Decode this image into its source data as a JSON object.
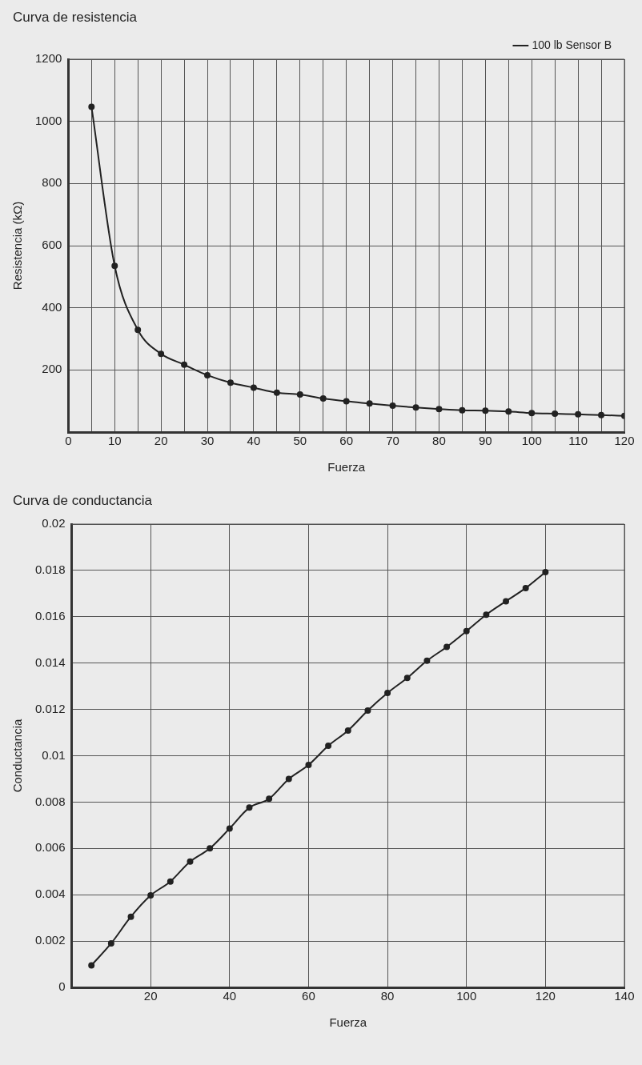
{
  "chart_data": [
    {
      "type": "line",
      "title": "Curva de resistencia",
      "xlabel": "Fuerza",
      "ylabel": "Resistencia (kΩ)",
      "legend": "top right",
      "grid": true,
      "marker": "circle",
      "line_style": "solid",
      "xlim": [
        0,
        120
      ],
      "xticks": [
        0,
        {
          "value": 5,
          "label": null
        },
        10,
        {
          "value": 15,
          "label": null
        },
        20,
        {
          "value": 25,
          "label": null
        },
        30,
        {
          "value": 35,
          "label": null
        },
        40,
        {
          "value": 45,
          "label": null
        },
        50,
        {
          "value": 55,
          "label": null
        },
        60,
        {
          "value": 65,
          "label": null
        },
        70,
        {
          "value": 75,
          "label": null
        },
        80,
        {
          "value": 85,
          "label": null
        },
        90,
        {
          "value": 95,
          "label": null
        },
        100,
        {
          "value": 105,
          "label": null
        },
        110,
        {
          "value": 115,
          "label": null
        },
        120
      ],
      "ylim": [
        0,
        1200
      ],
      "yticks": [
        200,
        400,
        600,
        800,
        1000,
        1200
      ],
      "x": [
        5,
        10,
        15,
        20,
        25,
        30,
        35,
        40,
        45,
        50,
        55,
        60,
        65,
        70,
        75,
        80,
        85,
        90,
        95,
        100,
        105,
        110,
        115,
        120
      ],
      "series": [
        {
          "name": "100 lb Sensor B",
          "color": "#222222",
          "values": [
            1047,
            535,
            329,
            252,
            217,
            183,
            159,
            143,
            127,
            121,
            108,
            99,
            92,
            85,
            79,
            74,
            70,
            69,
            66,
            61,
            59,
            57,
            55,
            52
          ]
        }
      ]
    },
    {
      "type": "line",
      "title": "Curva de conductancia",
      "xlabel": "Fuerza",
      "ylabel": "Conductancia",
      "grid": true,
      "marker": "circle",
      "line_style": "solid",
      "xlim": [
        0,
        140
      ],
      "xticks": [
        20,
        40,
        60,
        80,
        100,
        120,
        140
      ],
      "ylim": [
        0,
        0.02
      ],
      "yticks": [
        0,
        0.002,
        0.004,
        0.006,
        0.008,
        0.01,
        0.012,
        0.014,
        0.016,
        0.018,
        0.02
      ],
      "x": [
        5,
        10,
        15,
        20,
        25,
        30,
        35,
        40,
        45,
        50,
        55,
        60,
        65,
        70,
        75,
        80,
        85,
        90,
        95,
        100,
        105,
        110,
        115,
        120
      ],
      "series": [
        {
          "color": "#222222",
          "values": [
            0.00095,
            0.0019,
            0.00305,
            0.00397,
            0.00457,
            0.00543,
            0.006,
            0.00686,
            0.00776,
            0.00814,
            0.009,
            0.0096,
            0.01043,
            0.01109,
            0.01195,
            0.01271,
            0.01336,
            0.0141,
            0.0147,
            0.01538,
            0.01609,
            0.01667,
            0.01724,
            0.01793
          ]
        }
      ]
    }
  ]
}
